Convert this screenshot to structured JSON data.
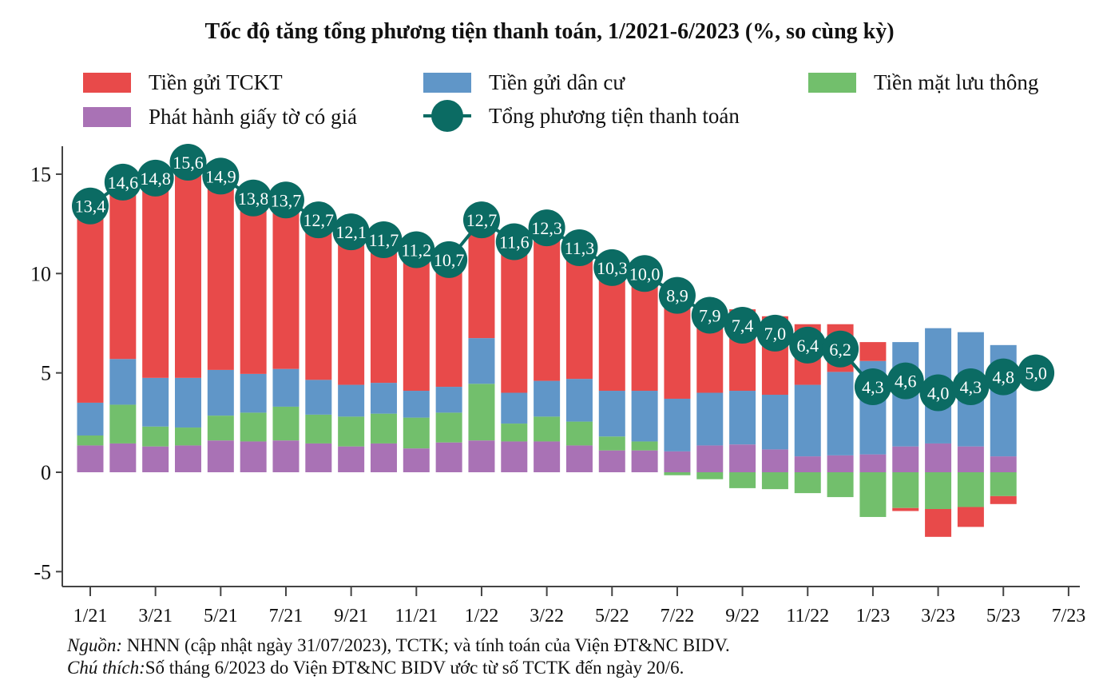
{
  "chart_data": {
    "type": "bar",
    "subtype": "stacked-bar-with-line",
    "title": "Tốc độ tăng tổng phương tiện thanh toán, 1/2021-6/2023 (%, so cùng kỳ)",
    "xlabel": "",
    "ylabel": "",
    "ylim": [
      -5.8,
      16.4
    ],
    "yticks": [
      -5,
      0,
      5,
      10,
      15
    ],
    "ytick_labels": [
      "-5",
      "0",
      "5",
      "10",
      "15"
    ],
    "xtick_labels": [
      "1/21",
      "3/21",
      "5/21",
      "7/21",
      "9/21",
      "11/21",
      "1/22",
      "3/22",
      "5/22",
      "7/22",
      "9/22",
      "11/22",
      "1/23",
      "3/23",
      "5/23",
      "7/23"
    ],
    "grid": false,
    "legend_position": "top",
    "categories": [
      "1/21",
      "2/21",
      "3/21",
      "4/21",
      "5/21",
      "6/21",
      "7/21",
      "8/21",
      "9/21",
      "10/21",
      "11/21",
      "12/21",
      "1/22",
      "2/22",
      "3/22",
      "4/22",
      "5/22",
      "6/22",
      "7/22",
      "8/22",
      "9/22",
      "10/22",
      "11/22",
      "12/22",
      "1/23",
      "2/23",
      "3/23",
      "4/23",
      "5/23",
      "6/23"
    ],
    "series": [
      {
        "name": "Phát hành giấy tờ có giá",
        "kind": "bar",
        "color": "#a972b5",
        "values": [
          1.35,
          1.45,
          1.3,
          1.35,
          1.6,
          1.55,
          1.6,
          1.45,
          1.3,
          1.45,
          1.2,
          1.5,
          1.6,
          1.55,
          1.55,
          1.35,
          1.1,
          1.1,
          1.05,
          1.35,
          1.4,
          1.15,
          0.8,
          0.85,
          0.9,
          1.3,
          1.45,
          1.3,
          0.8,
          null
        ]
      },
      {
        "name": "Tiền mặt lưu thông",
        "kind": "bar",
        "color": "#72bf6c",
        "values": [
          0.5,
          1.95,
          1.0,
          0.9,
          1.25,
          1.45,
          1.7,
          1.45,
          1.5,
          1.5,
          1.55,
          1.5,
          2.85,
          0.9,
          1.25,
          1.2,
          0.7,
          0.45,
          -0.15,
          -0.35,
          -0.8,
          -0.85,
          -1.05,
          -1.25,
          -2.25,
          -1.8,
          -1.85,
          -1.75,
          -1.2,
          null
        ]
      },
      {
        "name": "Tiền gửi dân cư",
        "kind": "bar",
        "color": "#6096c8",
        "values": [
          1.65,
          2.3,
          2.45,
          2.5,
          2.3,
          1.95,
          1.9,
          1.75,
          1.6,
          1.55,
          1.35,
          1.3,
          2.3,
          1.55,
          1.8,
          2.15,
          2.3,
          2.55,
          2.65,
          2.65,
          2.7,
          2.75,
          3.6,
          4.2,
          4.7,
          5.25,
          5.8,
          5.75,
          5.6,
          null
        ]
      },
      {
        "name": "Tiền gửi TCKT",
        "kind": "bar",
        "color": "#e84a4a",
        "values": [
          9.9,
          8.9,
          10.05,
          10.85,
          9.75,
          8.85,
          8.5,
          8.05,
          7.7,
          7.2,
          7.1,
          6.4,
          5.95,
          7.6,
          7.7,
          6.6,
          6.2,
          5.9,
          5.35,
          4.25,
          4.1,
          3.95,
          3.05,
          2.4,
          0.95,
          -0.15,
          -1.4,
          -1.0,
          -0.4,
          null
        ]
      },
      {
        "name": "Tổng phương tiện thanh toán",
        "kind": "line",
        "color": "#0b6b63",
        "values": [
          13.4,
          14.6,
          14.8,
          15.6,
          14.9,
          13.8,
          13.7,
          12.7,
          12.1,
          11.7,
          11.2,
          10.7,
          12.7,
          11.6,
          12.3,
          11.3,
          10.3,
          10.0,
          8.9,
          7.9,
          7.4,
          7.0,
          6.4,
          6.2,
          4.3,
          4.6,
          4.0,
          4.3,
          4.8,
          5.0
        ],
        "labels": [
          "13,4",
          "14,6",
          "14,8",
          "15,6",
          "14,9",
          "13,8",
          "13,7",
          "12,7",
          "12,1",
          "11,7",
          "11,2",
          "10,7",
          "12,7",
          "11,6",
          "12,3",
          "11,3",
          "10,3",
          "10,0",
          "8,9",
          "7,9",
          "7,4",
          "7,0",
          "6,4",
          "6,2",
          "4,3",
          "4,6",
          "4,0",
          "4,3",
          "4,8",
          "5,0"
        ]
      }
    ]
  },
  "legend": [
    {
      "label": "Tiền gửi TCKT",
      "color": "#e84a4a"
    },
    {
      "label": "Tiền gửi dân cư",
      "color": "#6096c8"
    },
    {
      "label": "Tiền mặt lưu thông",
      "color": "#72bf6c"
    },
    {
      "label": "Phát hành giấy tờ có giá",
      "color": "#a972b5"
    },
    {
      "label": "Tổng phương tiện thanh toán",
      "color": "#0b6b63"
    }
  ],
  "footnotes": {
    "source_label": "Nguồn:",
    "source_text": " NHNN (cập nhật ngày 31/07/2023), TCTK; và tính toán của Viện ĐT&NC BIDV.",
    "note_label": "Chú thích:",
    "note_text": "Số tháng 6/2023 do Viện ĐT&NC BIDV ước từ số TCTK đến ngày 20/6."
  },
  "colors": {
    "axis": "#444444",
    "label_text": "#ffffff"
  }
}
